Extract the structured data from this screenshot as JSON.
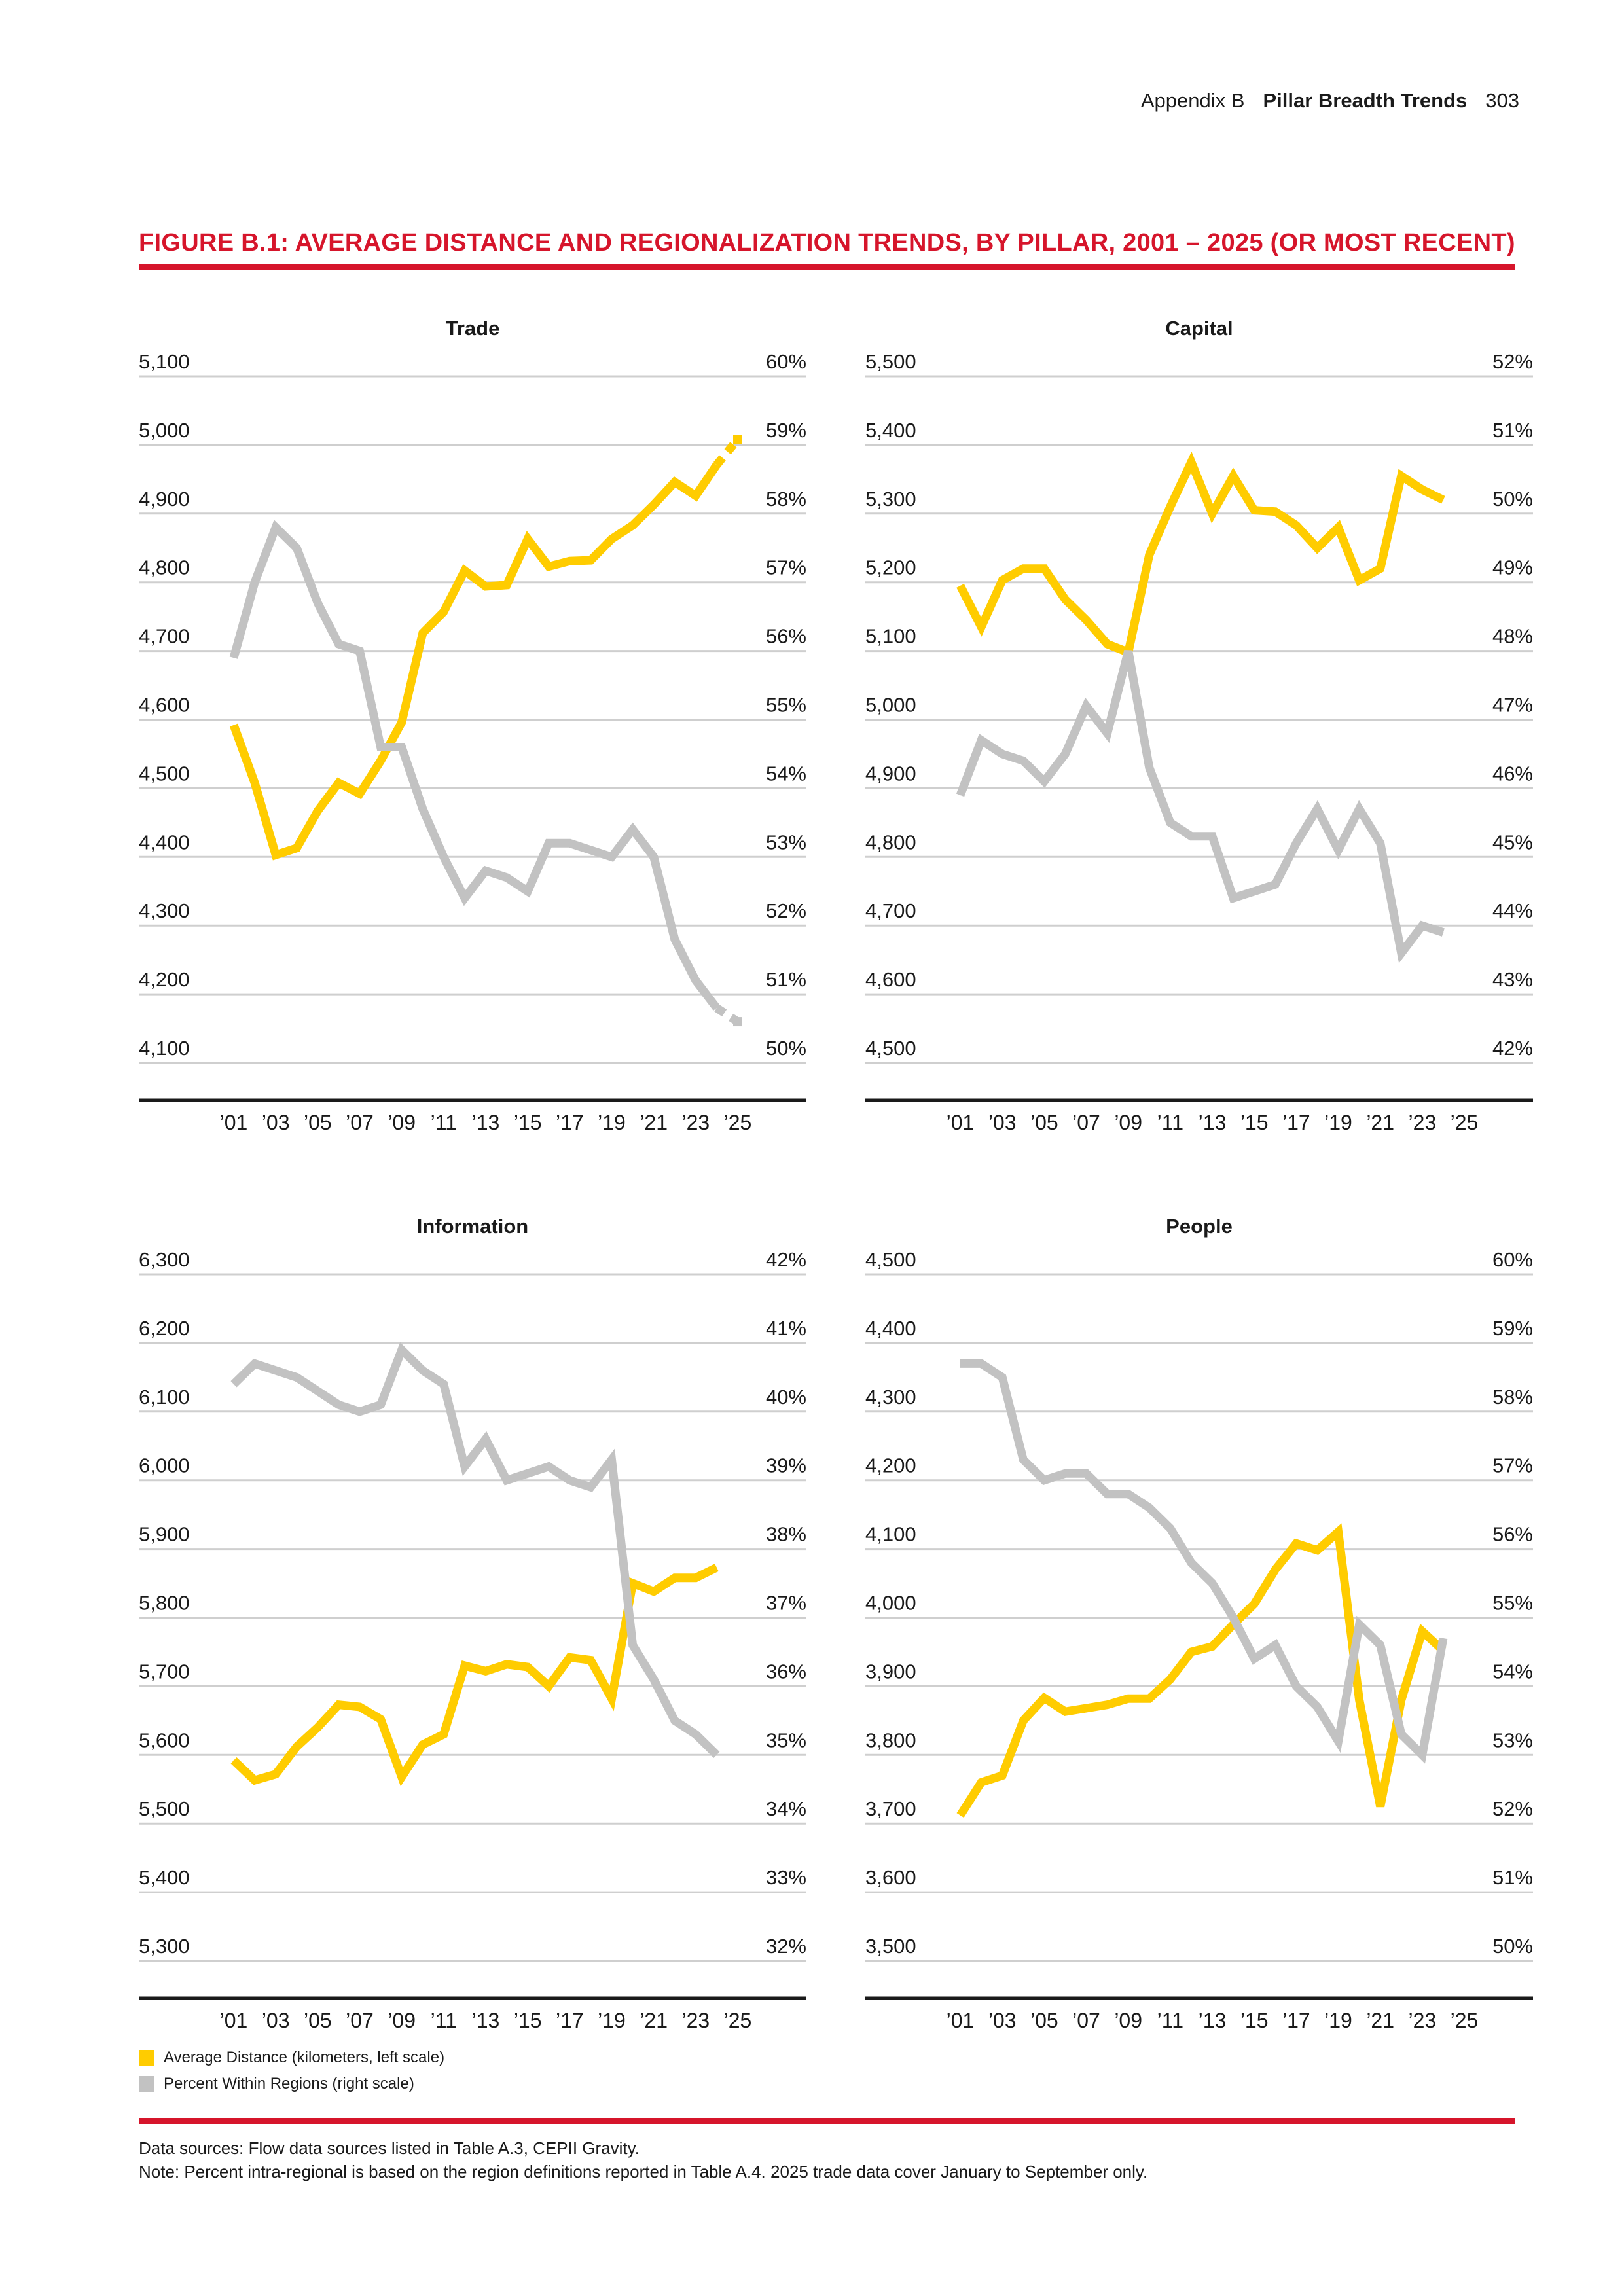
{
  "header": {
    "appendix": "Appendix B",
    "section": "Pillar Breadth Trends",
    "page_number": "303"
  },
  "figure": {
    "title": "Figure B.1: Average distance and regionalization trends, by pillar, 2001 – 2025 (or most recent)"
  },
  "colors": {
    "accent_red": "#d6152b",
    "distance_yellow": "#ffcc00",
    "regions_gray": "#c2c2c2",
    "gridline": "#cfcfcf",
    "axis": "#1a1a1a"
  },
  "legend": {
    "distance_label": "Average Distance (kilometers, left scale)",
    "regions_label": "Percent Within Regions (right scale)"
  },
  "notes": {
    "sources": "Data sources: Flow data sources listed in Table A.3, CEPII Gravity.",
    "note": "Note: Percent intra-regional is based on the region definitions reported in Table A.4. 2025 trade data cover January to September only."
  },
  "chart_data": [
    {
      "type": "line",
      "title": "Trade",
      "x": [
        2001,
        2002,
        2003,
        2004,
        2005,
        2006,
        2007,
        2008,
        2009,
        2010,
        2011,
        2012,
        2013,
        2014,
        2015,
        2016,
        2017,
        2018,
        2019,
        2020,
        2021,
        2022,
        2023,
        2024,
        2025
      ],
      "x_tick_labels": [
        "’01",
        "’03",
        "’05",
        "’07",
        "’09",
        "’11",
        "’13",
        "’15",
        "’17",
        "’19",
        "’21",
        "’23",
        "’25"
      ],
      "left_axis": {
        "ylim": [
          4100,
          5100
        ],
        "tick_labels": [
          "5,100",
          "5,000",
          "4,900",
          "4,800",
          "4,700",
          "4,600",
          "4,500",
          "4,400",
          "4,300",
          "4,200",
          "4,100"
        ]
      },
      "right_axis": {
        "ylim": [
          50,
          60
        ],
        "tick_labels": [
          "60%",
          "59%",
          "58%",
          "57%",
          "56%",
          "55%",
          "54%",
          "53%",
          "52%",
          "51%",
          "50%"
        ]
      },
      "series": [
        {
          "name": "Average Distance (kilometers, left scale)",
          "axis": "left",
          "color": "#ffcc00",
          "values": [
            4592,
            4508,
            4403,
            4413,
            4467,
            4508,
            4492,
            4540,
            4596,
            4726,
            4757,
            4817,
            4794,
            4796,
            4863,
            4823,
            4831,
            4832,
            4863,
            4883,
            4913,
            4946,
            4926,
            4971,
            null
          ],
          "dotted_last": {
            "x": 2025,
            "value": 5008
          }
        },
        {
          "name": "Percent Within Regions (right scale)",
          "axis": "right",
          "color": "#c2c2c2",
          "values": [
            55.9,
            57.0,
            57.8,
            57.5,
            56.7,
            56.1,
            56.0,
            54.6,
            54.6,
            53.7,
            53.0,
            52.4,
            52.8,
            52.7,
            52.5,
            53.2,
            53.2,
            53.1,
            53.0,
            53.4,
            53.0,
            51.8,
            51.2,
            50.8,
            null
          ],
          "dotted_last": {
            "x": 2025,
            "value": 50.6
          }
        }
      ]
    },
    {
      "type": "line",
      "title": "Capital",
      "x": [
        2001,
        2002,
        2003,
        2004,
        2005,
        2006,
        2007,
        2008,
        2009,
        2010,
        2011,
        2012,
        2013,
        2014,
        2015,
        2016,
        2017,
        2018,
        2019,
        2020,
        2021,
        2022,
        2023,
        2024
      ],
      "x_tick_labels": [
        "’01",
        "’03",
        "’05",
        "’07",
        "’09",
        "’11",
        "’13",
        "’15",
        "’17",
        "’19",
        "’21",
        "’23",
        "’25"
      ],
      "left_axis": {
        "ylim": [
          4500,
          5500
        ],
        "tick_labels": [
          "5,500",
          "5,400",
          "5,300",
          "5,200",
          "5,100",
          "5,000",
          "4,900",
          "4,800",
          "4,700",
          "4,600",
          "4,500"
        ]
      },
      "right_axis": {
        "ylim": [
          42,
          52
        ],
        "tick_labels": [
          "52%",
          "51%",
          "50%",
          "49%",
          "48%",
          "47%",
          "46%",
          "45%",
          "44%",
          "43%",
          "42%"
        ]
      },
      "series": [
        {
          "name": "Average Distance (kilometers, left scale)",
          "axis": "left",
          "color": "#ffcc00",
          "values": [
            5195,
            5135,
            5203,
            5220,
            5220,
            5175,
            5145,
            5110,
            5098,
            5240,
            5310,
            5375,
            5300,
            5355,
            5305,
            5303,
            5283,
            5250,
            5280,
            5203,
            5220,
            5355,
            5335,
            5320
          ]
        },
        {
          "name": "Percent Within Regions (right scale)",
          "axis": "right",
          "color": "#c2c2c2",
          "values": [
            45.9,
            46.7,
            46.5,
            46.4,
            46.1,
            46.5,
            47.2,
            46.8,
            48.0,
            46.3,
            45.5,
            45.3,
            45.3,
            44.4,
            44.5,
            44.6,
            45.2,
            45.7,
            45.1,
            45.7,
            45.2,
            43.6,
            44.0,
            43.9
          ]
        }
      ]
    },
    {
      "type": "line",
      "title": "Information",
      "x": [
        2001,
        2002,
        2003,
        2004,
        2005,
        2006,
        2007,
        2008,
        2009,
        2010,
        2011,
        2012,
        2013,
        2014,
        2015,
        2016,
        2017,
        2018,
        2019,
        2020,
        2021,
        2022,
        2023,
        2024
      ],
      "x_tick_labels": [
        "’01",
        "’03",
        "’05",
        "’07",
        "’09",
        "’11",
        "’13",
        "’15",
        "’17",
        "’19",
        "’21",
        "’23",
        "’25"
      ],
      "left_axis": {
        "ylim": [
          5300,
          6300
        ],
        "tick_labels": [
          "6,300",
          "6,200",
          "6,100",
          "6,000",
          "5,900",
          "5,800",
          "5,700",
          "5,600",
          "5,500",
          "5,400",
          "5,300"
        ]
      },
      "right_axis": {
        "ylim": [
          32,
          42
        ],
        "tick_labels": [
          "42%",
          "41%",
          "40%",
          "39%",
          "38%",
          "37%",
          "36%",
          "35%",
          "34%",
          "33%",
          "32%"
        ]
      },
      "series": [
        {
          "name": "Average Distance (kilometers, left scale)",
          "axis": "left",
          "color": "#ffcc00",
          "values": [
            5592,
            5563,
            5572,
            5612,
            5640,
            5673,
            5670,
            5652,
            5568,
            5615,
            5630,
            5730,
            5722,
            5732,
            5728,
            5700,
            5742,
            5738,
            5682,
            5850,
            5838,
            5858,
            5858,
            5873
          ]
        },
        {
          "name": "Percent Within Regions (right scale)",
          "axis": "right",
          "color": "#c2c2c2",
          "values": [
            40.4,
            40.7,
            40.6,
            40.5,
            40.3,
            40.1,
            40.0,
            40.1,
            40.9,
            40.6,
            40.4,
            39.2,
            39.6,
            39.0,
            39.1,
            39.2,
            39.0,
            38.9,
            39.3,
            36.6,
            36.1,
            35.5,
            35.3,
            35.0
          ]
        }
      ]
    },
    {
      "type": "line",
      "title": "People",
      "x": [
        2001,
        2002,
        2003,
        2004,
        2005,
        2006,
        2007,
        2008,
        2009,
        2010,
        2011,
        2012,
        2013,
        2014,
        2015,
        2016,
        2017,
        2018,
        2019,
        2020,
        2021,
        2022,
        2023,
        2024
      ],
      "x_tick_labels": [
        "’01",
        "’03",
        "’05",
        "’07",
        "’09",
        "’11",
        "’13",
        "’15",
        "’17",
        "’19",
        "’21",
        "’23",
        "’25"
      ],
      "left_axis": {
        "ylim": [
          3500,
          4500
        ],
        "tick_labels": [
          "4,500",
          "4,400",
          "4,300",
          "4,200",
          "4,100",
          "4,000",
          "3,900",
          "3,800",
          "3,700",
          "3,600",
          "3,500"
        ]
      },
      "right_axis": {
        "ylim": [
          50,
          60
        ],
        "tick_labels": [
          "60%",
          "59%",
          "58%",
          "57%",
          "56%",
          "55%",
          "54%",
          "53%",
          "52%",
          "51%",
          "50%"
        ]
      },
      "series": [
        {
          "name": "Average Distance (kilometers, left scale)",
          "axis": "left",
          "color": "#ffcc00",
          "values": [
            3712,
            3760,
            3770,
            3850,
            3883,
            3863,
            3868,
            3873,
            3882,
            3882,
            3910,
            3950,
            3958,
            3990,
            4020,
            4070,
            4108,
            4098,
            4125,
            3880,
            3725,
            3880,
            3980,
            3952
          ]
        },
        {
          "name": "Percent Within Regions (right scale)",
          "axis": "right",
          "color": "#c2c2c2",
          "values": [
            58.7,
            58.7,
            58.5,
            57.3,
            57.0,
            57.1,
            57.1,
            56.8,
            56.8,
            56.6,
            56.3,
            55.8,
            55.5,
            55.0,
            54.4,
            54.6,
            54.0,
            53.7,
            53.2,
            54.9,
            54.6,
            53.3,
            53.0,
            54.7
          ]
        }
      ]
    }
  ]
}
